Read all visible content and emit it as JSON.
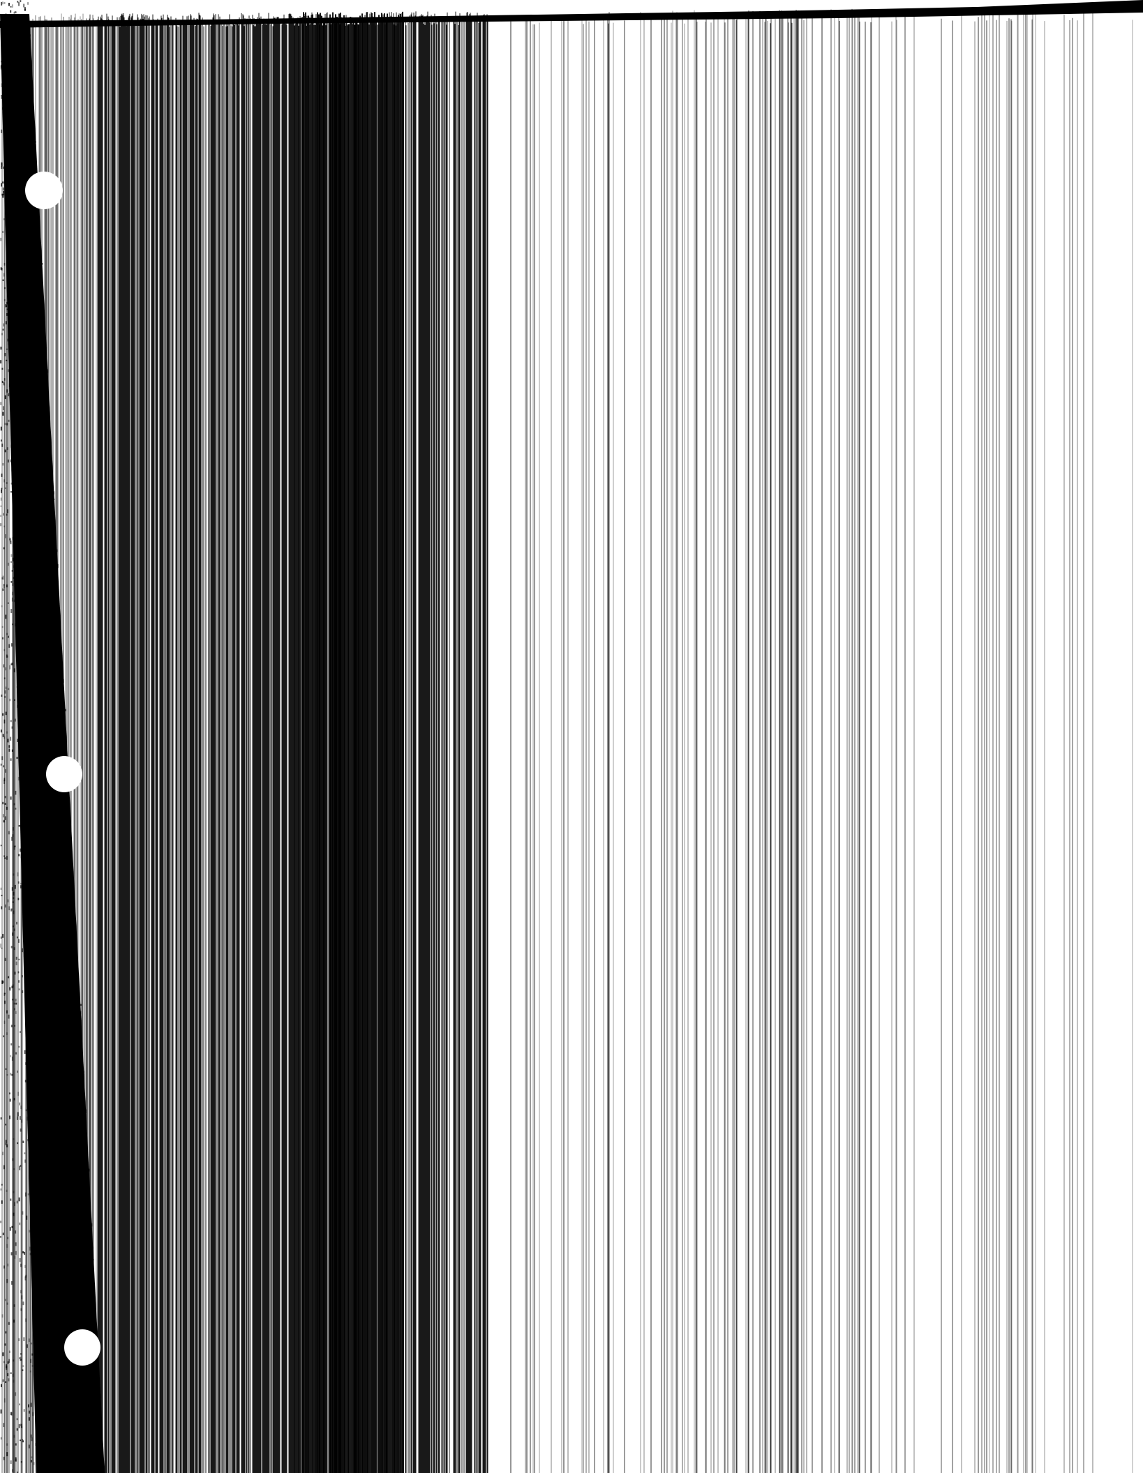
{
  "page": {
    "kind": "scanned-page",
    "background_color": "#ffffff",
    "ink_color": "#000000",
    "binding_hole_count": 3,
    "binder_edge": "left"
  }
}
